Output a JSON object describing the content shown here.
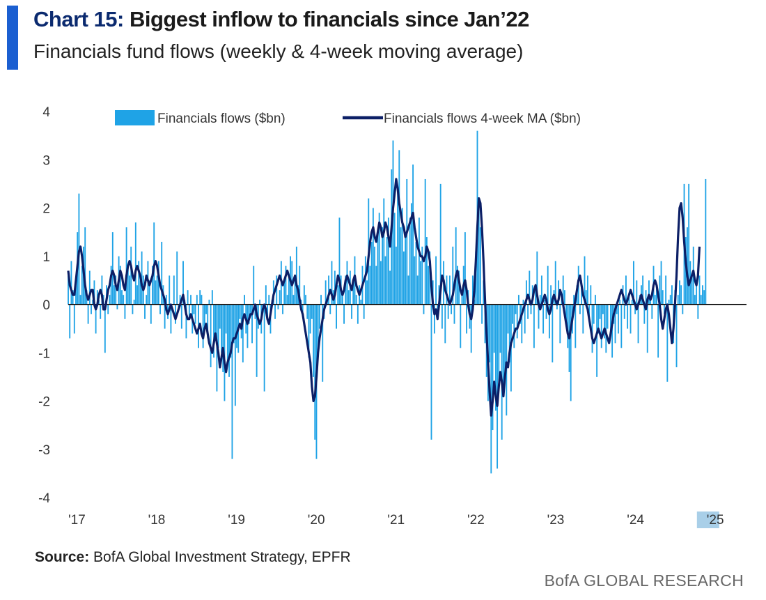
{
  "header": {
    "title_prefix": "Chart 15:",
    "title_main": "Biggest inflow to financials since Jan’22",
    "subtitle": "Financials fund flows (weekly & 4-week moving average)"
  },
  "footer": {
    "source_label": "Source:",
    "source_text": "BofA Global Investment Strategy, EPFR",
    "brand": "BofA GLOBAL RESEARCH"
  },
  "colors": {
    "accent": "#1b5fd1",
    "bars": "#1fa3e6",
    "ma_line": "#0c1f66",
    "zero_line": "#222222"
  },
  "chart_data": {
    "type": "bar+line",
    "title": "Biggest inflow to financials since Jan’22",
    "subtitle": "Financials fund flows (weekly & 4-week moving average)",
    "ylim": [
      -4,
      4
    ],
    "yticks": [
      4,
      3,
      2,
      1,
      0,
      -1,
      -2,
      -3,
      -4
    ],
    "xlim": [
      2017.0,
      2025.15
    ],
    "xticks": [
      {
        "value": 2017,
        "label": "'17"
      },
      {
        "value": 2018,
        "label": "'18"
      },
      {
        "value": 2019,
        "label": "'19"
      },
      {
        "value": 2020,
        "label": "'20"
      },
      {
        "value": 2021,
        "label": "'21"
      },
      {
        "value": 2022,
        "label": "'22"
      },
      {
        "value": 2023,
        "label": "'23"
      },
      {
        "value": 2024,
        "label": "'24"
      },
      {
        "value": 2025,
        "label": "'25",
        "highlight": true
      }
    ],
    "legend_placement": "top",
    "series": [
      {
        "name": "Financials flows ($bn)",
        "type": "bar",
        "frequency": "weekly",
        "start": 2017.0,
        "step_years": 0.0192,
        "values": [
          0.6,
          -0.7,
          0.9,
          0.3,
          -0.6,
          0.4,
          1.5,
          2.3,
          0.2,
          0.8,
          1.2,
          1.6,
          0.3,
          -0.4,
          0.7,
          -0.2,
          0.1,
          0.5,
          -0.6,
          0.3,
          0.1,
          -0.3,
          0.6,
          0.2,
          -1.0,
          0.4,
          -0.2,
          0.2,
          0.8,
          1.5,
          0.4,
          0.6,
          -0.1,
          1.0,
          0.8,
          0.3,
          0.2,
          -0.3,
          1.6,
          0.8,
          0.6,
          1.2,
          -0.2,
          0.1,
          1.7,
          0.4,
          0.9,
          0.5,
          1.1,
          0.6,
          -0.3,
          0.2,
          0.9,
          0.5,
          -0.4,
          0.8,
          1.7,
          0.5,
          0.6,
          0.9,
          -0.2,
          1.3,
          0.4,
          -0.5,
          0.2,
          -0.3,
          0.6,
          -0.6,
          0.0,
          0.6,
          -0.4,
          1.1,
          -0.1,
          0.2,
          -0.5,
          0.9,
          0.1,
          -0.7,
          0.3,
          -0.3,
          0.2,
          -0.6,
          -0.2,
          -0.4,
          0.2,
          -0.9,
          0.3,
          0.2,
          -0.9,
          -0.5,
          -0.2,
          -0.7,
          0.1,
          -1.3,
          0.3,
          -1.1,
          -0.6,
          -1.8,
          -0.9,
          -0.5,
          -1.0,
          -1.4,
          -2.0,
          -0.6,
          -1.2,
          -1.5,
          -1.1,
          -3.2,
          -0.8,
          -2.1,
          -0.9,
          -1.0,
          -0.3,
          -0.7,
          -1.2,
          0.2,
          -0.6,
          -0.9,
          -0.4,
          -0.2,
          -0.8,
          0.8,
          -0.3,
          -1.5,
          -0.5,
          0.1,
          -0.6,
          -0.1,
          -1.8,
          0.4,
          -0.3,
          0.2,
          -0.6,
          0.1,
          0.5,
          -0.3,
          0.6,
          -0.1,
          0.3,
          0.9,
          -0.2,
          0.5,
          0.8,
          0.2,
          0.6,
          1.0,
          0.9,
          0.2,
          0.5,
          1.2,
          0.4,
          0.8,
          0.1,
          -0.2,
          0.4,
          0.2,
          -0.3,
          -1.1,
          -0.6,
          -0.3,
          -1.5,
          -2.8,
          -3.2,
          -1.0,
          -0.5,
          0.2,
          -1.6,
          -0.3,
          0.5,
          0.1,
          0.6,
          -0.2,
          0.9,
          0.3,
          0.7,
          -0.5,
          0.4,
          1.8,
          0.6,
          0.2,
          -0.4,
          0.6,
          0.9,
          0.3,
          0.7,
          -0.3,
          0.5,
          1.0,
          0.2,
          -0.4,
          0.4,
          0.1,
          0.8,
          -0.3,
          1.0,
          0.5,
          2.2,
          0.8,
          1.3,
          2.0,
          1.2,
          0.8,
          1.5,
          1.9,
          0.9,
          1.6,
          2.2,
          1.0,
          1.4,
          1.8,
          0.7,
          2.8,
          3.4,
          1.9,
          1.2,
          2.4,
          3.2,
          1.6,
          2.0,
          1.1,
          1.4,
          2.6,
          0.6,
          1.8,
          2.1,
          2.9,
          1.0,
          1.3,
          0.6,
          1.8,
          0.9,
          1.2,
          -0.2,
          2.6,
          1.4,
          0.8,
          1.1,
          -2.8,
          0.5,
          -0.6,
          1.0,
          -0.3,
          0.4,
          2.5,
          -0.5,
          0.9,
          -0.8,
          0.6,
          -0.3,
          0.6,
          -0.2,
          1.2,
          -0.4,
          1.6,
          0.8,
          0.7,
          -0.9,
          0.2,
          0.8,
          1.5,
          -0.6,
          0.3,
          -0.5,
          -1.0,
          0.6,
          0.1,
          1.1,
          3.6,
          2.2,
          1.6,
          -0.4,
          0.5,
          -0.8,
          -1.5,
          -2.0,
          -1.2,
          -3.5,
          -2.6,
          -1.0,
          -2.2,
          -3.4,
          -1.6,
          -1.0,
          -2.8,
          -1.8,
          -1.5,
          -2.3,
          -0.6,
          -1.2,
          -1.8,
          -0.4,
          -0.9,
          -0.2,
          -0.7,
          0.2,
          -0.4,
          -0.8,
          0.1,
          -0.6,
          0.5,
          -0.3,
          0.7,
          -0.2,
          0.4,
          -0.9,
          0.3,
          1.1,
          -0.5,
          0.2,
          0.6,
          -0.6,
          0.1,
          -0.3,
          0.8,
          -0.7,
          0.4,
          -1.2,
          0.3,
          0.9,
          -0.1,
          0.5,
          -0.8,
          0.2,
          0.6,
          0.3,
          -0.4,
          -0.9,
          -1.4,
          -2.0,
          -0.6,
          0.2,
          -0.9,
          0.4,
          0.8,
          -0.2,
          0.5,
          -0.6,
          1.0,
          0.3,
          0.6,
          -0.3,
          0.4,
          -1.0,
          -0.4,
          0.2,
          -1.5,
          -0.6,
          -0.3,
          -0.9,
          -0.2,
          -0.7,
          -1.0,
          -0.5,
          0.0,
          -0.6,
          -1.1,
          -0.4,
          -0.8,
          -0.2,
          -0.6,
          0.1,
          -0.9,
          0.4,
          -0.3,
          0.6,
          -0.5,
          0.2,
          -0.6,
          0.1,
          0.9,
          -0.2,
          0.5,
          -0.8,
          0.2,
          0.4,
          0.6,
          -0.4,
          0.3,
          -1.0,
          0.5,
          0.1,
          -0.3,
          0.8,
          0.2,
          0.4,
          -1.1,
          0.6,
          0.9,
          0.3,
          -0.2,
          0.6,
          -1.6,
          0.1,
          0.2,
          0.4,
          -0.8,
          0.3,
          -1.3,
          0.2,
          0.5,
          0.4,
          -0.2,
          2.5,
          1.4,
          1.6,
          2.5,
          0.9,
          0.6,
          1.2,
          0.2,
          0.4,
          -0.3,
          0.6,
          0.2,
          0.4,
          0.3,
          2.6
        ]
      },
      {
        "name": "Financials flows 4-week MA ($bn)",
        "type": "line",
        "frequency": "weekly",
        "start": 2017.0,
        "step_years": 0.0192,
        "values": [
          0.7,
          0.4,
          0.3,
          0.2,
          0.2,
          0.5,
          0.8,
          1.1,
          1.2,
          1.0,
          0.7,
          0.4,
          0.2,
          0.1,
          0.2,
          0.3,
          0.3,
          0.0,
          -0.1,
          0.0,
          0.2,
          0.3,
          0.2,
          -0.1,
          -0.1,
          0.1,
          0.3,
          0.4,
          0.6,
          0.7,
          0.6,
          0.4,
          0.3,
          0.5,
          0.7,
          0.6,
          0.4,
          0.3,
          0.6,
          0.8,
          0.9,
          0.8,
          0.6,
          0.5,
          0.7,
          0.8,
          0.7,
          0.6,
          0.4,
          0.3,
          0.4,
          0.6,
          0.5,
          0.4,
          0.5,
          0.6,
          0.8,
          0.9,
          0.8,
          0.6,
          0.4,
          0.3,
          0.2,
          0.1,
          -0.1,
          -0.2,
          -0.1,
          0.0,
          -0.1,
          -0.2,
          -0.3,
          -0.2,
          -0.1,
          0.0,
          0.1,
          0.2,
          0.0,
          -0.2,
          -0.3,
          -0.3,
          -0.2,
          -0.3,
          -0.4,
          -0.5,
          -0.6,
          -0.5,
          -0.4,
          -0.6,
          -0.7,
          -0.5,
          -0.4,
          -0.6,
          -0.8,
          -0.9,
          -1.0,
          -0.8,
          -0.6,
          -0.8,
          -1.0,
          -1.3,
          -1.1,
          -0.9,
          -1.2,
          -1.4,
          -1.2,
          -1.1,
          -1.0,
          -0.8,
          -0.7,
          -0.7,
          -0.6,
          -0.5,
          -0.4,
          -0.5,
          -0.3,
          -0.2,
          -0.3,
          -0.4,
          -0.3,
          -0.2,
          -0.2,
          -0.1,
          0.0,
          -0.2,
          -0.3,
          -0.4,
          -0.3,
          -0.1,
          0.0,
          -0.1,
          -0.3,
          -0.4,
          -0.2,
          0.0,
          0.2,
          0.3,
          0.4,
          0.5,
          0.6,
          0.5,
          0.4,
          0.5,
          0.6,
          0.7,
          0.6,
          0.5,
          0.4,
          0.5,
          0.6,
          0.4,
          0.3,
          0.1,
          -0.1,
          -0.2,
          -0.4,
          -0.6,
          -0.8,
          -1.0,
          -1.2,
          -1.7,
          -2.0,
          -1.9,
          -1.5,
          -1.0,
          -0.7,
          -0.5,
          -0.3,
          -0.1,
          0.0,
          0.1,
          0.2,
          0.3,
          0.2,
          0.1,
          0.2,
          0.4,
          0.6,
          0.5,
          0.3,
          0.2,
          0.3,
          0.5,
          0.6,
          0.5,
          0.4,
          0.3,
          0.5,
          0.6,
          0.4,
          0.3,
          0.2,
          0.3,
          0.4,
          0.5,
          0.6,
          0.7,
          1.0,
          1.3,
          1.5,
          1.6,
          1.4,
          1.3,
          1.5,
          1.7,
          1.6,
          1.4,
          1.5,
          1.7,
          1.6,
          1.4,
          1.2,
          1.6,
          2.0,
          2.3,
          2.6,
          2.4,
          2.1,
          1.9,
          1.7,
          1.6,
          1.4,
          1.5,
          1.6,
          1.7,
          1.8,
          1.9,
          1.6,
          1.4,
          1.2,
          1.1,
          1.0,
          1.0,
          0.9,
          1.0,
          1.2,
          1.1,
          0.9,
          0.4,
          0.0,
          -0.2,
          -0.1,
          -0.3,
          0.0,
          0.3,
          0.6,
          0.5,
          0.3,
          0.2,
          0.1,
          0.0,
          0.1,
          0.2,
          0.4,
          0.6,
          0.7,
          0.5,
          0.3,
          0.2,
          0.4,
          0.5,
          0.3,
          0.0,
          -0.2,
          -0.3,
          -0.1,
          0.3,
          0.9,
          1.6,
          2.2,
          2.1,
          1.6,
          0.9,
          0.1,
          -0.6,
          -1.2,
          -1.8,
          -2.3,
          -2.0,
          -1.6,
          -1.9,
          -2.1,
          -1.7,
          -1.4,
          -1.6,
          -1.9,
          -1.5,
          -1.2,
          -1.3,
          -1.0,
          -0.8,
          -0.7,
          -0.6,
          -0.5,
          -0.5,
          -0.4,
          -0.3,
          -0.2,
          -0.1,
          0.0,
          0.1,
          0.2,
          0.1,
          0.0,
          0.1,
          0.3,
          0.4,
          0.2,
          0.0,
          -0.1,
          0.0,
          0.1,
          0.2,
          0.1,
          -0.1,
          -0.2,
          -0.1,
          0.1,
          0.2,
          0.1,
          0.0,
          0.1,
          0.3,
          0.2,
          0.0,
          -0.2,
          -0.4,
          -0.6,
          -0.7,
          -0.5,
          -0.3,
          -0.1,
          0.1,
          0.3,
          0.5,
          0.6,
          0.4,
          0.2,
          0.1,
          0.0,
          -0.1,
          -0.3,
          -0.5,
          -0.7,
          -0.8,
          -0.7,
          -0.6,
          -0.5,
          -0.6,
          -0.7,
          -0.6,
          -0.5,
          -0.6,
          -0.7,
          -0.8,
          -0.6,
          -0.4,
          -0.2,
          -0.1,
          0.0,
          0.1,
          0.2,
          0.3,
          0.2,
          0.1,
          0.0,
          0.1,
          0.2,
          0.3,
          0.2,
          0.1,
          0.0,
          -0.1,
          0.0,
          0.1,
          0.2,
          0.1,
          0.0,
          -0.1,
          0.1,
          0.2,
          0.1,
          0.2,
          0.4,
          0.5,
          0.4,
          0.2,
          0.0,
          -0.3,
          -0.5,
          -0.3,
          -0.1,
          0.0,
          -0.2,
          -0.5,
          -0.8,
          -0.5,
          0.0,
          0.6,
          1.4,
          2.0,
          2.1,
          1.8,
          1.3,
          0.9,
          0.6,
          0.4,
          0.5,
          0.6,
          0.7,
          0.5,
          0.4,
          0.6,
          1.2
        ]
      }
    ]
  }
}
